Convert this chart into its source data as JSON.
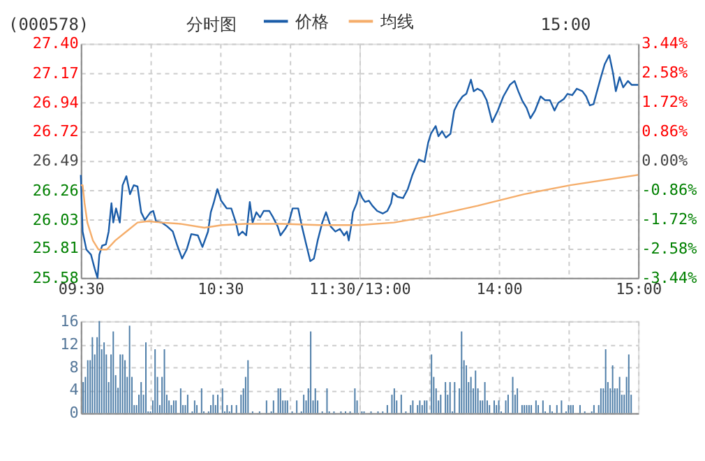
{
  "chart_data": [
    {
      "type": "line",
      "title": "(000578)",
      "subtitle": "分时图",
      "xlim": [
        9.5,
        11.5
      ],
      "xticks": [
        {
          "value": 9.5,
          "label": "09:30"
        },
        {
          "value": 10,
          "label": null
        },
        {
          "value": 10.5,
          "label": "10:30"
        },
        {
          "value": 11,
          "label": null
        },
        {
          "value": 11.5,
          "label": "11:30/13:00"
        }
      ],
      "ylim": [
        25.58,
        27.4
      ],
      "yticks": [
        {
          "value": 25.58,
          "label": "25.58"
        },
        25.81,
        26.03,
        26.26,
        26.49,
        26.72,
        26.94,
        27.17,
        {
          "value": 27.4,
          "label": "27.40"
        }
      ],
      "grid": true,
      "legend": "top",
      "line_style": "solid",
      "marker": "none",
      "series": [
        {
          "name": "价格",
          "color": "#1a5ca8",
          "x": [
            9.5,
            9.513,
            9.54,
            9.573,
            9.6,
            9.62,
            9.633,
            9.653,
            9.68,
            9.7,
            9.72,
            9.733,
            9.753,
            9.78,
            9.8,
            9.827,
            9.853,
            9.88,
            9.907,
            9.933,
            9.96,
            10,
            10.02,
            10.04,
            10.08,
            10.12,
            10.16,
            10.193,
            10.227,
            10.26,
            10.293,
            10.34,
            10.373,
            10.413,
            10.433,
            10.453,
            10.48,
            10.507,
            10.547,
            10.58,
            10.613,
            10.633,
            10.66,
            10.687,
            10.713,
            10.733,
            10.76,
            10.787,
            10.813,
            10.853,
            10.88,
            10.913,
            10.933,
            10.967,
            10.993,
            11.02,
            11.06,
            11.087,
            11.12,
            11.147,
            11.173,
            11.2,
            11.233,
            11.26,
            11.293,
            11.327,
            11.36,
            11.39,
            11.41,
            11.423,
            11.44,
            11.453,
            11.48,
            11.5
          ],
          "values": [
            26.38,
            25.94,
            25.8,
            25.76,
            25.65,
            25.58,
            25.76,
            25.83,
            25.84,
            25.94,
            26.16,
            26.01,
            26.12,
            26.01,
            26.3,
            26.37,
            26.23,
            26.3,
            26.29,
            26.09,
            26.03,
            26.09,
            26.1,
            26.02,
            26.01,
            25.98,
            25.94,
            25.83,
            25.73,
            25.8,
            25.92,
            25.91,
            25.82,
            25.94,
            26.09,
            26.16,
            26.27,
            26.18,
            26.12,
            26.12,
            26.01,
            25.91,
            25.94,
            25.91,
            26.17,
            26.01,
            26.09,
            26.05,
            26.1,
            26.1,
            26.05,
            25.98,
            25.91,
            25.96,
            26.01,
            26.12,
            26.12,
            25.98,
            25.83,
            25.71,
            25.73,
            25.87,
            26.01,
            26.09,
            25.98,
            25.94,
            25.96,
            25.91,
            25.94,
            25.87,
            25.98,
            26.09,
            26.16,
            26.25
          ]
        },
        {
          "name": "均线",
          "color": "#f5ad6a",
          "x": [
            9.5,
            9.513,
            9.527,
            9.547,
            9.587,
            9.627,
            9.687,
            9.747,
            9.827,
            9.907,
            9.98,
            10.08,
            10.213,
            10.387,
            10.513,
            10.68,
            10.947,
            11.213,
            11.447,
            11.5
          ],
          "values": [
            26.3,
            26.3,
            26.16,
            26.01,
            25.87,
            25.8,
            25.8,
            25.87,
            25.94,
            26.01,
            26.02,
            26.01,
            26,
            25.97,
            25.99,
            26,
            26,
            25.99,
            25.99,
            25.99
          ]
        }
      ]
    },
    {
      "type": "line",
      "annotations": [
        "15:00"
      ],
      "tick_labels": "x",
      "xlim": [
        13,
        15
      ],
      "xticks": [
        {
          "value": 13,
          "label": null
        },
        {
          "value": 13.5,
          "label": null
        },
        {
          "value": 14,
          "label": "14:00"
        },
        {
          "value": 14.5,
          "label": null
        },
        {
          "value": 15,
          "label": "15:00"
        }
      ],
      "ylim": [
        25.58,
        27.4
      ],
      "yticks": [
        25.58,
        25.81,
        26.03,
        26.26,
        26.49,
        26.72,
        26.94,
        27.17,
        27.4
      ],
      "y2lim": [
        -3.44,
        3.44
      ],
      "y2ticks": [
        {
          "value": -3.44,
          "label": "-3.44%"
        },
        {
          "value": -2.58,
          "label": "-2.58%"
        },
        {
          "value": -1.72,
          "label": "-1.72%"
        },
        {
          "value": -0.86,
          "label": "-0.86%"
        },
        {
          "value": 0,
          "label": "0.00%"
        },
        {
          "value": 0.86,
          "label": "0.86%"
        },
        {
          "value": 1.72,
          "label": "1.72%"
        },
        {
          "value": 2.58,
          "label": "2.58%"
        },
        {
          "value": 3.44,
          "label": "3.44%"
        }
      ],
      "grid": true,
      "line_style": "solid",
      "marker": "none",
      "series": [
        {
          "color": "#1a5ca8",
          "x": [
            13,
            13.02,
            13.04,
            13.067,
            13.093,
            13.127,
            13.167,
            13.2,
            13.227,
            13.24,
            13.273,
            13.313,
            13.347,
            13.38,
            13.407,
            13.427,
            13.467,
            13.493,
            13.513,
            13.547,
            13.567,
            13.593,
            13.62,
            13.653,
            13.68,
            13.707,
            13.74,
            13.767,
            13.8,
            13.82,
            13.847,
            13.88,
            13.913,
            13.953,
            13.993,
            14.033,
            14.08,
            14.113,
            14.14,
            14.167,
            14.2,
            14.227,
            14.26,
            14.3,
            14.333,
            14.367,
            14.4,
            14.427,
            14.467,
            14.493,
            14.527,
            14.56,
            14.6,
            14.627,
            14.653,
            14.68,
            14.7,
            14.733,
            14.76,
            14.793,
            14.82,
            14.84,
            14.867,
            14.893,
            14.927,
            14.953,
            15
          ],
          "values": [
            26.25,
            26.2,
            26.17,
            26.18,
            26.14,
            26.1,
            26.08,
            26.1,
            26.16,
            26.24,
            26.21,
            26.2,
            26.27,
            26.38,
            26.45,
            26.5,
            26.48,
            26.63,
            26.7,
            26.76,
            26.68,
            26.72,
            26.67,
            26.7,
            26.88,
            26.94,
            26.99,
            27.01,
            27.12,
            27.03,
            27.05,
            27.03,
            26.96,
            26.79,
            26.88,
            26.99,
            27.08,
            27.11,
            27.03,
            26.96,
            26.9,
            26.82,
            26.88,
            26.99,
            26.96,
            26.96,
            26.88,
            26.94,
            26.97,
            27.01,
            27,
            27.05,
            27.03,
            26.99,
            26.92,
            26.93,
            27.01,
            27.14,
            27.24,
            27.31,
            27.17,
            27.03,
            27.14,
            27.06,
            27.11,
            27.08,
            27.08
          ]
        },
        {
          "color": "#f5ad6a",
          "x": [
            13,
            13.247,
            13.513,
            13.847,
            14.18,
            14.513,
            15
          ],
          "values": [
            25.99,
            26.01,
            26.06,
            26.14,
            26.23,
            26.3,
            26.38
          ]
        }
      ]
    },
    {
      "type": "bar",
      "xlim": [
        9.5,
        11.5
      ],
      "xticks": [
        9.5,
        10,
        10.5,
        11,
        11.5
      ],
      "ylim": [
        0,
        16
      ],
      "yticks": [
        0,
        4,
        8,
        12,
        16
      ],
      "grid": true,
      "tick_labels": "y",
      "series": [
        {
          "color": "#4f7ea8",
          "x": [
            9.517,
            9.533,
            9.55,
            9.567,
            9.583,
            9.6,
            9.617,
            9.633,
            9.65,
            9.667,
            9.683,
            9.7,
            9.717,
            9.733,
            9.75,
            9.767,
            9.783,
            9.8,
            9.817,
            9.833,
            9.85,
            9.867,
            9.883,
            9.9,
            9.917,
            9.933,
            9.95,
            9.967,
            9.983,
            10,
            10.017,
            10.033,
            10.05,
            10.067,
            10.083,
            10.1,
            10.117,
            10.133,
            10.15,
            10.167,
            10.183,
            10.217,
            10.233,
            10.25,
            10.267,
            10.3,
            10.317,
            10.333,
            10.367,
            10.383,
            10.417,
            10.433,
            10.45,
            10.467,
            10.483,
            10.517,
            10.533,
            10.55,
            10.567,
            10.583,
            10.617,
            10.65,
            10.667,
            10.683,
            10.7,
            10.733,
            10.783,
            10.833,
            10.867,
            10.883,
            10.917,
            10.933,
            10.95,
            10.967,
            10.983,
            11.017,
            11.05,
            11.083,
            11.1,
            11.117,
            11.133,
            11.15,
            11.167,
            11.183,
            11.2,
            11.233,
            11.267,
            11.283,
            11.317,
            11.367,
            11.4,
            11.433,
            11.467,
            11.483
          ],
          "values": [
            5.4,
            6.3,
            9.2,
            9.2,
            13.2,
            10.2,
            13.2,
            16,
            11.1,
            12.3,
            10.2,
            5.4,
            10.2,
            14.2,
            6.6,
            4.4,
            10.2,
            10.2,
            9.2,
            6.3,
            15.2,
            6.3,
            1.4,
            1.4,
            3.2,
            5.4,
            3.2,
            12.3,
            0.3,
            0.3,
            2.2,
            11.1,
            6.3,
            1.4,
            6.3,
            11.1,
            3.2,
            2.2,
            1.4,
            2.2,
            2.2,
            4.3,
            1.4,
            1.4,
            3.2,
            0.3,
            2.2,
            1.4,
            4.3,
            0.3,
            0.3,
            1.4,
            3.2,
            1.4,
            3.2,
            4.3,
            0.3,
            1.4,
            0.3,
            1.4,
            1.4,
            3.2,
            4.3,
            6.3,
            9.2,
            0.3,
            0.3,
            2.2,
            0.3,
            2.2,
            4.3,
            4.3,
            2.2,
            2.2,
            2.2,
            0.3,
            2.2,
            0.3,
            3.2,
            2.2,
            4.3,
            14.2,
            2.2,
            4.3,
            2.2,
            0.3,
            4.3,
            0.3,
            0.3,
            0.3,
            0.3,
            0.3,
            4.3,
            2.2
          ]
        }
      ]
    },
    {
      "type": "bar",
      "xlim": [
        13,
        15
      ],
      "xticks": [
        13,
        13.5,
        14,
        14.5,
        15
      ],
      "ylim": [
        0,
        16
      ],
      "yticks": [
        0,
        4,
        8,
        12,
        16
      ],
      "grid": true,
      "tick_labels": false,
      "series": [
        {
          "color": "#4f7ea8",
          "x": [
            13.017,
            13.033,
            13.083,
            13.133,
            13.167,
            13.2,
            13.233,
            13.25,
            13.267,
            13.3,
            13.333,
            13.367,
            13.383,
            13.417,
            13.433,
            13.45,
            13.467,
            13.483,
            13.517,
            13.533,
            13.55,
            13.567,
            13.583,
            13.617,
            13.633,
            13.65,
            13.667,
            13.683,
            13.717,
            13.733,
            13.75,
            13.767,
            13.783,
            13.8,
            13.817,
            13.833,
            13.85,
            13.867,
            13.883,
            13.9,
            13.917,
            13.933,
            13.967,
            13.983,
            14,
            14.017,
            14.05,
            14.067,
            14.1,
            14.117,
            14.133,
            14.167,
            14.183,
            14.2,
            14.217,
            14.233,
            14.267,
            14.283,
            14.317,
            14.333,
            14.367,
            14.383,
            14.417,
            14.45,
            14.483,
            14.5,
            14.517,
            14.533,
            14.583,
            14.617,
            14.667,
            14.683,
            14.717,
            14.733,
            14.75,
            14.767,
            14.783,
            14.8,
            14.817,
            14.833,
            14.85,
            14.867,
            14.883,
            14.9,
            14.917,
            14.933,
            14.95
          ],
          "values": [
            0.3,
            0.3,
            0.3,
            0.3,
            0.3,
            1.4,
            3.2,
            4.3,
            2.2,
            3.2,
            0.3,
            1.4,
            2.2,
            1.4,
            2.2,
            1.4,
            2.2,
            2.2,
            10.2,
            6.3,
            4.3,
            2.2,
            3.2,
            5.4,
            3.2,
            5.4,
            0.3,
            5.4,
            4.3,
            14.2,
            9.2,
            8.3,
            5.4,
            6.3,
            4.3,
            7.4,
            4.3,
            2.2,
            2.2,
            5.4,
            2.2,
            1.4,
            2.2,
            1.4,
            2.2,
            0.3,
            2.2,
            3.2,
            6.3,
            3.2,
            4.3,
            1.4,
            1.4,
            1.4,
            1.4,
            1.4,
            2.2,
            1.4,
            2.2,
            0.3,
            1.4,
            0.3,
            1.4,
            2.2,
            0.3,
            1.4,
            1.4,
            1.4,
            1.4,
            0.3,
            0.3,
            1.4,
            1.4,
            4.3,
            4.3,
            11.1,
            5.4,
            4.3,
            8.3,
            4.3,
            4.3,
            6.3,
            3.2,
            3.2,
            6.3,
            10.2,
            3.2
          ]
        }
      ]
    }
  ]
}
